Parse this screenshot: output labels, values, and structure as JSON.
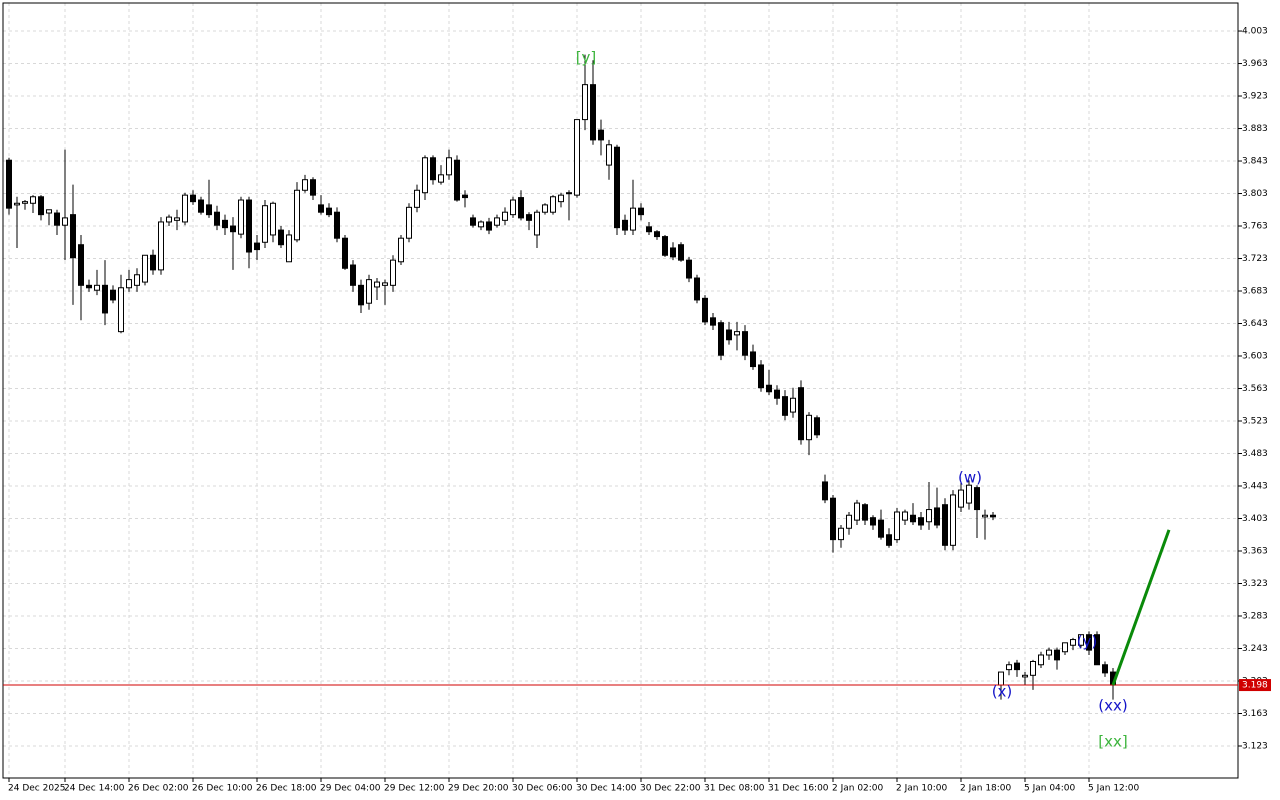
{
  "chart_data": {
    "type": "candlestick",
    "categories": [
      "24 Dec 2025",
      null,
      null,
      null,
      null,
      null,
      null,
      "24 Dec 14:00",
      null,
      null,
      null,
      null,
      null,
      null,
      null,
      "26 Dec 02:00",
      null,
      null,
      null,
      null,
      null,
      null,
      null,
      "26 Dec 10:00",
      null,
      null,
      null,
      null,
      null,
      null,
      null,
      "26 Dec 18:00",
      null,
      null,
      null,
      null,
      null,
      null,
      null,
      "29 Dec 04:00",
      null,
      null,
      null,
      null,
      null,
      null,
      null,
      "29 Dec 12:00",
      null,
      null,
      null,
      null,
      null,
      null,
      null,
      "29 Dec 20:00",
      null,
      null,
      null,
      null,
      null,
      null,
      null,
      "30 Dec 06:00",
      null,
      null,
      null,
      null,
      null,
      null,
      null,
      "30 Dec 14:00",
      null,
      null,
      null,
      null,
      null,
      null,
      null,
      "30 Dec 22:00",
      null,
      null,
      null,
      null,
      null,
      null,
      null,
      "31 Dec 08:00",
      null,
      null,
      null,
      null,
      null,
      null,
      null,
      "31 Dec 16:00",
      null,
      null,
      null,
      null,
      null,
      null,
      null,
      "2 Jan 02:00",
      null,
      null,
      null,
      null,
      null,
      null,
      null,
      "2 Jan 10:00",
      null,
      null,
      null,
      null,
      null,
      null,
      null,
      "2 Jan 18:00",
      null,
      null,
      null,
      null,
      null,
      null,
      null,
      "5 Jan 04:00",
      null,
      null,
      null,
      null,
      null,
      null,
      null,
      "5 Jan 12:00",
      null,
      null,
      null
    ],
    "open": [
      3.844,
      3.789,
      3.791,
      3.791,
      3.799,
      3.779,
      3.779,
      3.764,
      3.777,
      3.74,
      3.69,
      3.684,
      3.69,
      3.684,
      3.633,
      3.687,
      3.69,
      3.694,
      3.727,
      3.709,
      3.768,
      3.77,
      3.768,
      3.801,
      3.795,
      3.789,
      3.78,
      3.77,
      3.763,
      3.753,
      3.795,
      3.742,
      3.743,
      3.752,
      3.758,
      3.719,
      3.746,
      3.807,
      3.82,
      3.789,
      3.785,
      3.78,
      3.748,
      3.715,
      3.69,
      3.668,
      3.688,
      3.69,
      3.69,
      3.719,
      3.748,
      3.786,
      3.804,
      3.847,
      3.817,
      3.826,
      3.844,
      3.801,
      3.773,
      3.762,
      3.768,
      3.764,
      3.77,
      3.777,
      3.798,
      3.777,
      3.752,
      3.78,
      3.78,
      3.793,
      3.803,
      3.801,
      3.894,
      3.937,
      3.881,
      3.838,
      3.86,
      3.77,
      3.758,
      3.785,
      3.762,
      3.756,
      3.75,
      3.736,
      3.74,
      3.721,
      3.699,
      3.674,
      3.65,
      3.644,
      3.635,
      3.629,
      3.633,
      3.608,
      3.592,
      3.567,
      3.561,
      3.553,
      3.534,
      3.564,
      3.5,
      3.527,
      3.448,
      3.428,
      3.377,
      3.391,
      3.401,
      3.42,
      3.404,
      3.401,
      3.383,
      3.377,
      3.401,
      3.407,
      3.404,
      3.399,
      3.416,
      3.42,
      3.37,
      3.417,
      3.422,
      3.441,
      3.405,
      3.407,
      3.198,
      3.217,
      3.225,
      3.208,
      3.21,
      3.223,
      3.235,
      3.241,
      3.239,
      3.247,
      3.247,
      3.26,
      3.26,
      3.223,
      3.214
    ],
    "high": [
      3.847,
      3.799,
      3.795,
      3.801,
      3.801,
      3.783,
      3.783,
      3.857,
      3.814,
      3.752,
      3.697,
      3.709,
      3.721,
      3.69,
      3.703,
      3.709,
      3.711,
      3.727,
      3.734,
      3.774,
      3.777,
      3.783,
      3.804,
      3.807,
      3.799,
      3.82,
      3.788,
      3.777,
      3.774,
      3.799,
      3.799,
      3.752,
      3.795,
      3.793,
      3.763,
      3.758,
      3.817,
      3.826,
      3.823,
      3.801,
      3.791,
      3.786,
      3.752,
      3.721,
      3.697,
      3.703,
      3.699,
      3.697,
      3.727,
      3.752,
      3.791,
      3.814,
      3.85,
      3.85,
      3.838,
      3.857,
      3.85,
      3.807,
      3.777,
      3.77,
      3.773,
      3.777,
      3.786,
      3.799,
      3.807,
      3.78,
      3.783,
      3.791,
      3.801,
      3.804,
      3.807,
      3.894,
      3.974,
      3.967,
      3.894,
      3.869,
      3.863,
      3.777,
      3.82,
      3.791,
      3.768,
      3.758,
      3.752,
      3.743,
      3.743,
      3.725,
      3.703,
      3.678,
      3.656,
      3.647,
      3.645,
      3.645,
      3.641,
      3.617,
      3.598,
      3.586,
      3.567,
      3.561,
      3.564,
      3.573,
      3.534,
      3.53,
      3.457,
      3.432,
      3.395,
      3.411,
      3.426,
      3.422,
      3.407,
      3.414,
      3.391,
      3.416,
      3.414,
      3.422,
      3.411,
      3.448,
      3.441,
      3.428,
      3.438,
      3.448,
      3.45,
      3.444,
      3.414,
      3.411,
      3.214,
      3.227,
      3.229,
      3.214,
      3.229,
      3.239,
      3.244,
      3.244,
      3.25,
      3.256,
      3.26,
      3.264,
      3.264,
      3.227,
      3.219
    ],
    "low": [
      3.777,
      3.736,
      3.783,
      3.779,
      3.77,
      3.764,
      3.752,
      3.721,
      3.666,
      3.647,
      3.682,
      3.678,
      3.641,
      3.668,
      3.631,
      3.682,
      3.682,
      3.69,
      3.703,
      3.703,
      3.763,
      3.758,
      3.764,
      3.789,
      3.777,
      3.773,
      3.758,
      3.752,
      3.709,
      3.748,
      3.711,
      3.721,
      3.736,
      3.743,
      3.736,
      3.719,
      3.743,
      3.804,
      3.795,
      3.777,
      3.774,
      3.743,
      3.709,
      3.682,
      3.656,
      3.66,
      3.672,
      3.666,
      3.682,
      3.715,
      3.743,
      3.78,
      3.795,
      3.814,
      3.814,
      3.82,
      3.793,
      3.786,
      3.761,
      3.758,
      3.753,
      3.761,
      3.764,
      3.773,
      3.77,
      3.758,
      3.736,
      3.777,
      3.777,
      3.786,
      3.77,
      3.798,
      3.881,
      3.863,
      3.85,
      3.82,
      3.752,
      3.752,
      3.752,
      3.77,
      3.752,
      3.746,
      3.725,
      3.721,
      3.719,
      3.694,
      3.668,
      3.641,
      3.635,
      3.598,
      3.617,
      3.61,
      3.598,
      3.586,
      3.559,
      3.555,
      3.543,
      3.524,
      3.527,
      3.494,
      3.481,
      3.502,
      3.422,
      3.361,
      3.367,
      3.383,
      3.395,
      3.395,
      3.389,
      3.377,
      3.367,
      3.373,
      3.395,
      3.395,
      3.389,
      3.389,
      3.391,
      3.364,
      3.364,
      3.411,
      3.414,
      3.379,
      3.377,
      3.401,
      3.18,
      3.21,
      3.208,
      3.198,
      3.192,
      3.219,
      3.229,
      3.217,
      3.235,
      3.241,
      3.244,
      3.235,
      3.223,
      3.208,
      3.18
    ],
    "close": [
      3.785,
      3.791,
      3.793,
      3.799,
      3.777,
      3.783,
      3.764,
      3.773,
      3.724,
      3.69,
      3.687,
      3.69,
      3.656,
      3.672,
      3.687,
      3.697,
      3.703,
      3.727,
      3.709,
      3.768,
      3.774,
      3.773,
      3.801,
      3.793,
      3.78,
      3.777,
      3.764,
      3.761,
      3.756,
      3.795,
      3.731,
      3.734,
      3.788,
      3.791,
      3.74,
      3.752,
      3.807,
      3.82,
      3.801,
      3.78,
      3.777,
      3.748,
      3.711,
      3.69,
      3.666,
      3.697,
      3.694,
      3.693,
      3.721,
      3.748,
      3.786,
      3.807,
      3.847,
      3.82,
      3.826,
      3.847,
      3.795,
      3.798,
      3.764,
      3.768,
      3.758,
      3.773,
      3.78,
      3.795,
      3.773,
      3.77,
      3.78,
      3.789,
      3.799,
      3.801,
      3.804,
      3.894,
      3.937,
      3.869,
      3.869,
      3.863,
      3.761,
      3.758,
      3.785,
      3.777,
      3.756,
      3.75,
      3.727,
      3.725,
      3.721,
      3.699,
      3.672,
      3.645,
      3.641,
      3.604,
      3.623,
      3.633,
      3.604,
      3.59,
      3.564,
      3.559,
      3.551,
      3.53,
      3.551,
      3.5,
      3.53,
      3.506,
      3.426,
      3.377,
      3.391,
      3.407,
      3.422,
      3.401,
      3.395,
      3.38,
      3.37,
      3.411,
      3.411,
      3.399,
      3.395,
      3.414,
      3.395,
      3.37,
      3.432,
      3.438,
      3.444,
      3.414,
      3.407,
      3.405,
      3.214,
      3.223,
      3.217,
      3.21,
      3.227,
      3.235,
      3.241,
      3.229,
      3.25,
      3.254,
      3.26,
      3.241,
      3.223,
      3.213,
      3.198
    ],
    "up_color": "#ffffff",
    "down_color": "#000000",
    "ylim": [
      3.0836,
      4.0375
    ],
    "yticks": [
      4.003,
      3.963,
      3.923,
      3.883,
      3.843,
      3.803,
      3.763,
      3.723,
      3.683,
      3.643,
      3.603,
      3.563,
      3.523,
      3.483,
      3.443,
      3.403,
      3.363,
      3.323,
      3.283,
      3.243,
      3.203,
      3.163,
      3.123
    ],
    "grid": true,
    "current_price": 3.198,
    "current_price_color": "#d00000",
    "forecast": {
      "color": "#0a8a0a",
      "values": [
        3.198,
        3.389
      ]
    },
    "annotations": [
      {
        "text": "[y]",
        "color": "#3cb43c"
      },
      {
        "text": "(w)",
        "color": "#1414c8"
      },
      {
        "text": "(x)",
        "color": "#1414c8"
      },
      {
        "text": "(y)",
        "color": "#1414c8"
      },
      {
        "text": "(xx)",
        "color": "#1414c8"
      },
      {
        "text": "[xx]",
        "color": "#3cb43c"
      }
    ]
  }
}
